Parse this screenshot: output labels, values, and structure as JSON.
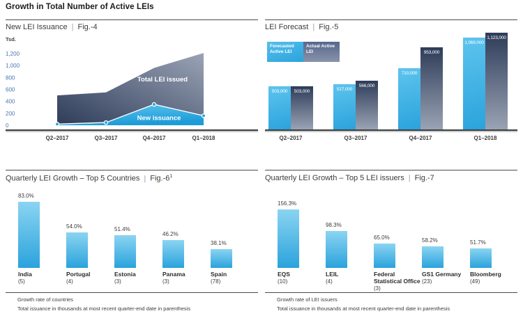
{
  "page_title": "Growth in Total Number of Active LEIs",
  "separator": "|",
  "colors": {
    "accent_light_blue": "#29A9E0",
    "bar_light_top": "#8BD4F2",
    "bar_light_bottom": "#2AA3DC",
    "bar_dark_top": "#2E3C59",
    "bar_dark_bottom": "#9AA3B4",
    "axis_tick_blue": "#4A76B0",
    "heading_gray": "#3C3C3B",
    "rule_gray": "#4A4A4A",
    "axis_shadow_gray": "#C9CACC"
  },
  "chart_data": [
    {
      "id": "fig4",
      "type": "area",
      "title": "New LEI Issuance",
      "fig": "Fig.-4",
      "ylabel": "Tsd.",
      "ylim": [
        0,
        1200
      ],
      "y_ticks": [
        1200,
        1000,
        800,
        600,
        400,
        200,
        0
      ],
      "y_tick_labels": [
        "1,200",
        "1,000",
        "800",
        "600",
        "400",
        "200",
        "0"
      ],
      "categories": [
        "Q2–2017",
        "Q3–2017",
        "Q4–2017",
        "Q1–2018"
      ],
      "grid": false,
      "series": [
        {
          "name": "Total LEI issued",
          "values": [
            500,
            550,
            960,
            1210
          ]
        },
        {
          "name": "New issuance",
          "values": [
            20,
            45,
            350,
            160
          ]
        }
      ]
    },
    {
      "id": "fig5",
      "type": "bar",
      "title": "LEI Forecast",
      "fig": "Fig.-5",
      "categories": [
        "Q2–2017",
        "Q3–2017",
        "Q4–2017",
        "Q1–2018"
      ],
      "legend_position": "top-left",
      "series": [
        {
          "name": "Forecasted Active LEI",
          "values": [
            503000,
            527000,
            710000,
            1069000
          ],
          "labels": [
            "503,000",
            "527,000",
            "710,000",
            "1,069,000"
          ]
        },
        {
          "name": "Actual Active LEI",
          "values": [
            503000,
            566000,
            953000,
            1123000
          ],
          "labels": [
            "503,000",
            "566,000",
            "953,000",
            "1,123,000"
          ]
        }
      ]
    },
    {
      "id": "fig6",
      "type": "bar",
      "title": "Quarterly LEI Growth – Top 5 Countries",
      "fig": "Fig.-6",
      "fig_sup": "1",
      "items": [
        {
          "name": "India",
          "name_lines": [
            "India"
          ],
          "count": "(5)",
          "value": 83.0,
          "label": "83.0%"
        },
        {
          "name": "Portugal",
          "name_lines": [
            "Portugal"
          ],
          "count": "(4)",
          "value": 54.0,
          "label": "54.0%"
        },
        {
          "name": "Estonia",
          "name_lines": [
            "Estonia"
          ],
          "count": "(3)",
          "value": 51.4,
          "label": "51.4%"
        },
        {
          "name": "Panama",
          "name_lines": [
            "Panama"
          ],
          "count": "(3)",
          "value": 46.2,
          "label": "46.2%"
        },
        {
          "name": "Spain",
          "name_lines": [
            "Spain"
          ],
          "count": "(78)",
          "value": 38.1,
          "label": "38.1%"
        }
      ],
      "footnotes": [
        "Growth rate of countries",
        "Total issuance in thousands at most recent quarter-end date in parenthesis"
      ]
    },
    {
      "id": "fig7",
      "type": "bar",
      "title": "Quarterly LEI Growth – Top 5 LEI issuers",
      "fig": "Fig.-7",
      "items": [
        {
          "name": "EQS",
          "name_lines": [
            "EQS"
          ],
          "count": "(10)",
          "value": 156.3,
          "label": "156.3%"
        },
        {
          "name": "LEIL",
          "name_lines": [
            "LEIL"
          ],
          "count": "(4)",
          "value": 98.3,
          "label": "98.3%"
        },
        {
          "name": "Federal Statistical Office",
          "name_lines": [
            "Federal",
            "Statistical Office"
          ],
          "count": "(3)",
          "value": 65.0,
          "label": "65.0%"
        },
        {
          "name": "GS1 Germany",
          "name_lines": [
            "GS1 Germany"
          ],
          "count": "(23)",
          "value": 58.2,
          "label": "58.2%"
        },
        {
          "name": "Bloomberg",
          "name_lines": [
            "Bloomberg"
          ],
          "count": "(49)",
          "value": 51.7,
          "label": "51.7%"
        }
      ],
      "footnotes": [
        "Growth rate of LEI issuers",
        "Total issuance in thousands at most recent quarter-end date in parenthesis"
      ]
    }
  ]
}
